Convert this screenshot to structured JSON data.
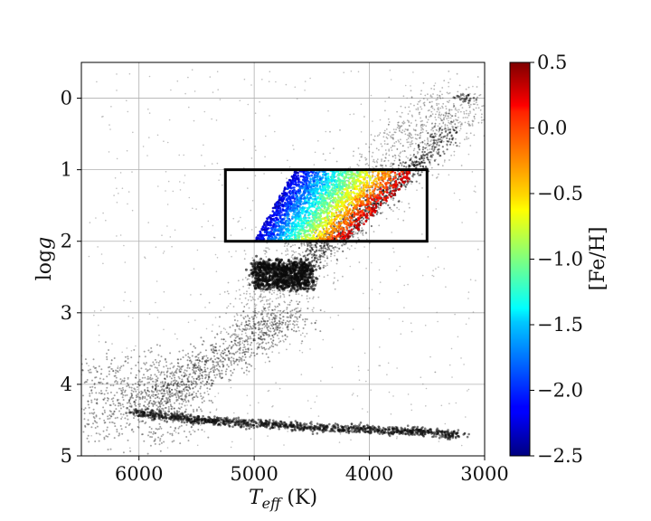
{
  "chart_data": {
    "type": "scatter",
    "title": "",
    "xlabel": "T_eff (K)",
    "xlabel_main": "T",
    "xlabel_sub": "eff",
    "xlabel_unit": " (K)",
    "ylabel": "logg",
    "ylabel_prefix": "log",
    "ylabel_var": "g",
    "xlim": [
      6500,
      3000
    ],
    "ylim": [
      5,
      -0.5
    ],
    "x_inverted": true,
    "y_inverted": true,
    "xticks": [
      6000,
      5000,
      4000,
      3000
    ],
    "xtick_labels": [
      "6000",
      "5000",
      "4000",
      "3000"
    ],
    "yticks": [
      0,
      1,
      2,
      3,
      4,
      5
    ],
    "ytick_labels": [
      "0",
      "1",
      "2",
      "3",
      "4",
      "5"
    ],
    "grid": true,
    "background_series": {
      "name": "",
      "color": "#7f7f7f",
      "features": [
        {
          "kind": "main_sequence",
          "teff": [
            6000,
            5500,
            5000,
            4500,
            4000,
            3500,
            3200
          ],
          "logg": [
            4.4,
            4.5,
            4.55,
            4.6,
            4.63,
            4.67,
            4.72
          ]
        },
        {
          "kind": "turnoff_subgiant",
          "teff": [
            6300,
            6000,
            5500,
            5200,
            5000
          ],
          "logg": [
            4.1,
            4.2,
            4.0,
            3.7,
            3.5
          ]
        },
        {
          "kind": "red_giant_branch",
          "teff": [
            5000,
            4850,
            4600,
            4300,
            4000,
            3700,
            3400,
            3200
          ],
          "logg": [
            3.3,
            2.8,
            2.2,
            1.6,
            1.1,
            0.6,
            0.3,
            0.0
          ]
        },
        {
          "kind": "red_clump",
          "teff_range": [
            4500,
            5000
          ],
          "logg_range": [
            2.3,
            2.65
          ]
        }
      ]
    },
    "selection_box": {
      "teff_min": 3500,
      "teff_max": 5250,
      "logg_min": 1.0,
      "logg_max": 2.0
    },
    "colored_series": {
      "name": "",
      "color_variable": "[Fe/H]",
      "colormap": "jet",
      "cmin": -2.5,
      "cmax": 0.5,
      "band": {
        "logg": [
          1.0,
          2.0
        ],
        "teff_metal_rich_edge_at_logg_1": 3550,
        "teff_metal_rich_edge_at_logg_2": 4200,
        "teff_metal_poor_edge_at_logg_1": 4650,
        "teff_metal_poor_edge_at_logg_2": 5000
      }
    },
    "colorbar": {
      "label": "[Fe/H]",
      "ticks": [
        0.5,
        0.0,
        -0.5,
        -1.0,
        -1.5,
        -2.0,
        -2.5
      ],
      "tick_labels": [
        "0.5",
        "0.0",
        "−0.5",
        "−1.0",
        "−1.5",
        "−2.0",
        "−2.5"
      ]
    }
  }
}
